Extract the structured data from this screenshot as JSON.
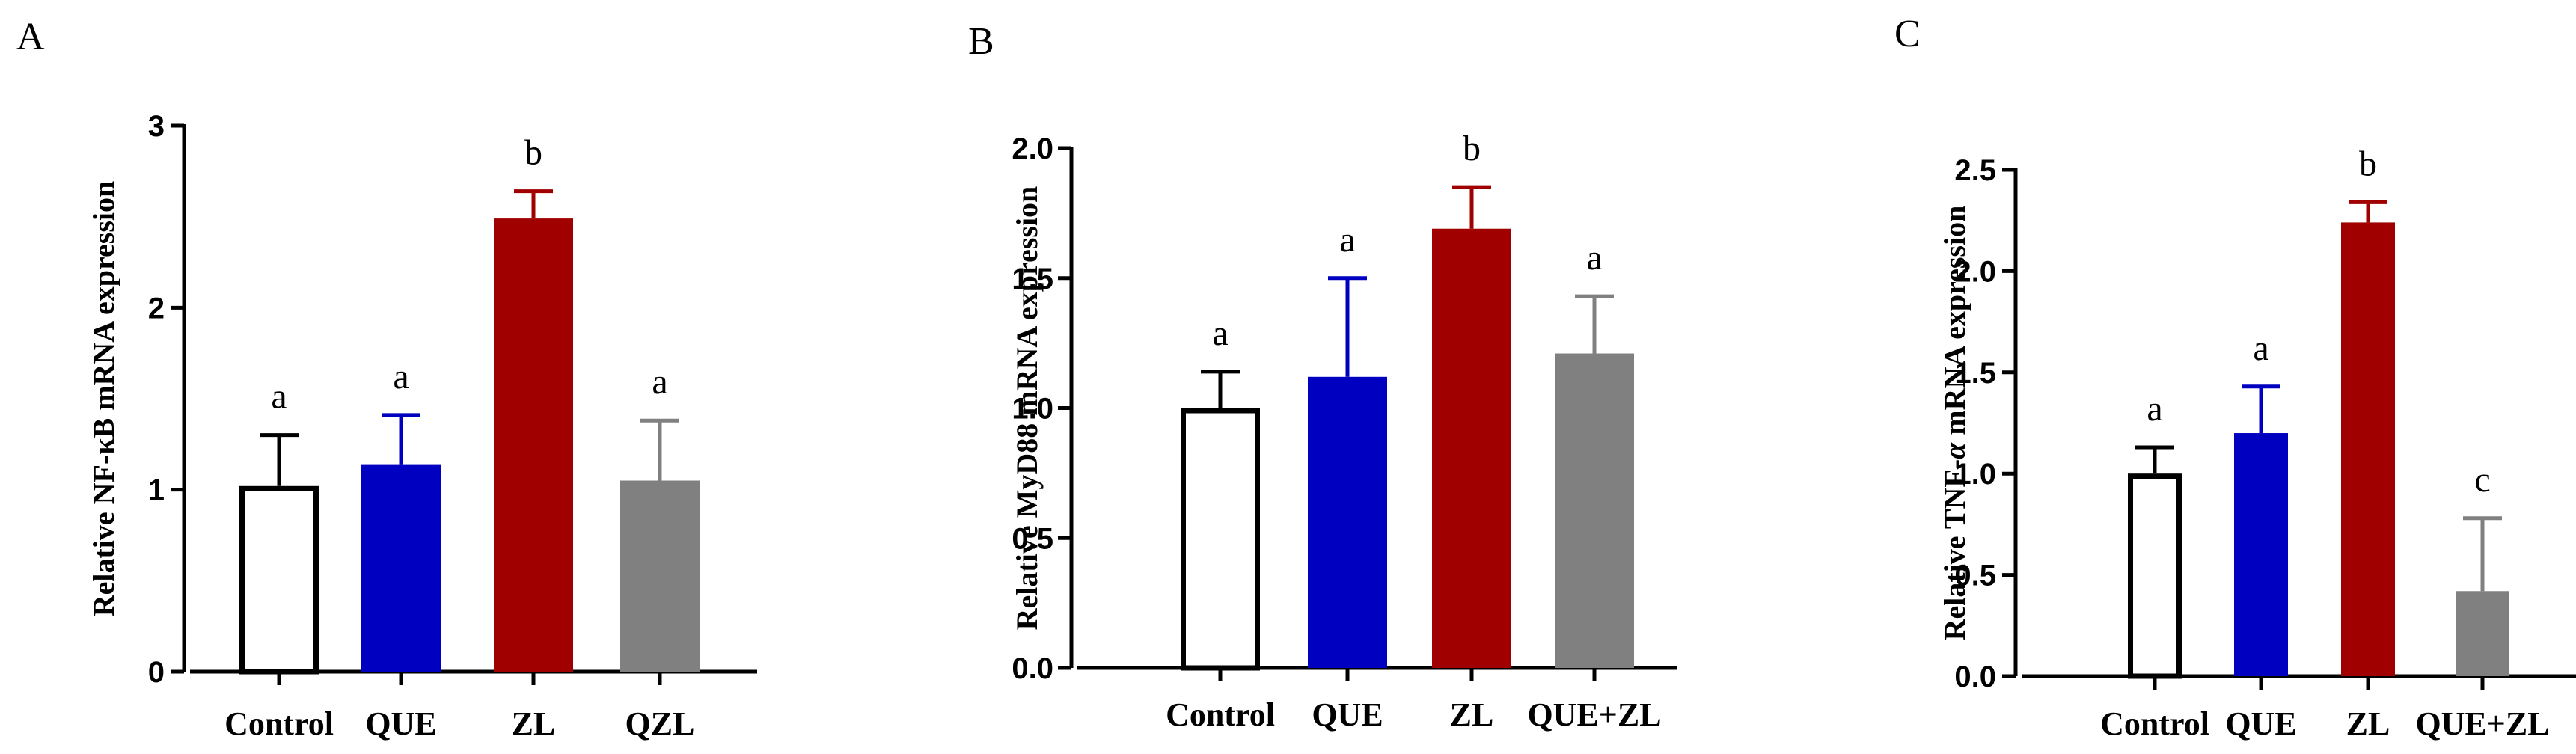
{
  "chart_data": [
    {
      "type": "bar",
      "panel": "A",
      "ylabel_parts": [
        "Relative NF-κB mRNA expression"
      ],
      "ylim": [
        0,
        3
      ],
      "yticks": [
        0,
        1,
        2,
        3
      ],
      "ytick_labels": [
        "0",
        "1",
        "2",
        "3"
      ],
      "categories": [
        "Control",
        "QUE",
        "ZL",
        "QZL"
      ],
      "values": [
        1.02,
        1.14,
        2.49,
        1.05
      ],
      "errors": [
        0.28,
        0.27,
        0.15,
        0.33
      ],
      "significance": [
        "a",
        "a",
        "b",
        "a"
      ],
      "colors": [
        "#ffffff",
        "#0000c0",
        "#a00000",
        "#808080"
      ]
    },
    {
      "type": "bar",
      "panel": "B",
      "ylabel_parts": [
        "Relative MyD88 mRNA expression"
      ],
      "ylim": [
        0,
        2
      ],
      "yticks": [
        0,
        0.5,
        1,
        1.5,
        2
      ],
      "ytick_labels": [
        "0.0",
        "0.5",
        "1.0",
        "1.5",
        "2.0"
      ],
      "categories": [
        "Control",
        "QUE",
        "ZL",
        "QUE+ZL"
      ],
      "values": [
        1.0,
        1.12,
        1.69,
        1.21
      ],
      "errors": [
        0.14,
        0.38,
        0.16,
        0.22
      ],
      "significance": [
        "a",
        "a",
        "b",
        "a"
      ],
      "colors": [
        "#ffffff",
        "#0000c0",
        "#a00000",
        "#808080"
      ]
    },
    {
      "type": "bar",
      "panel": "C",
      "ylabel_parts": [
        "Relative TNF-",
        "α",
        " mRNA expression"
      ],
      "ylim": [
        0,
        2.5
      ],
      "yticks": [
        0,
        0.5,
        1,
        1.5,
        2,
        2.5
      ],
      "ytick_labels": [
        "0.0",
        "0.5",
        "1.0",
        "1.5",
        "2.0",
        "2.5"
      ],
      "categories": [
        "Control",
        "QUE",
        "ZL",
        "QUE+ZL"
      ],
      "values": [
        1.0,
        1.2,
        2.24,
        0.42
      ],
      "errors": [
        0.13,
        0.23,
        0.1,
        0.36
      ],
      "significance": [
        "a",
        "a",
        "b",
        "c"
      ],
      "colors": [
        "#ffffff",
        "#0000c0",
        "#a00000",
        "#808080"
      ]
    }
  ]
}
